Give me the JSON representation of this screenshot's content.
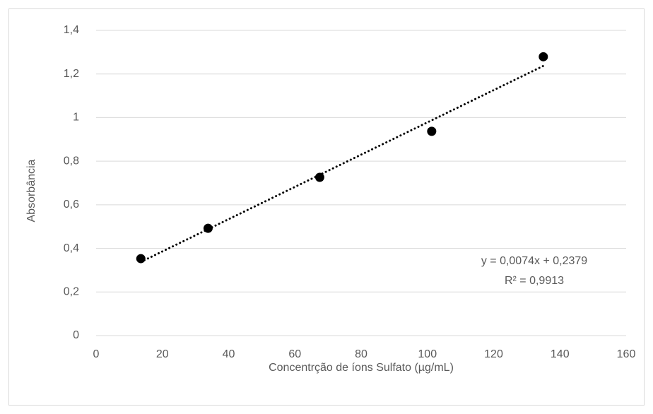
{
  "chart_data": {
    "type": "scatter",
    "x_label": "Concentrção de íons Sulfato (µg/mL)",
    "y_label": "Absorbância",
    "x": [
      13.5,
      33.8,
      67.5,
      101.3,
      135
    ],
    "values": [
      0.353,
      0.492,
      0.726,
      0.937,
      1.279
    ],
    "color": "#000000",
    "xlim": [
      0,
      160
    ],
    "xticks": [
      0,
      20,
      40,
      60,
      80,
      100,
      120,
      140,
      160
    ],
    "ylim": [
      0,
      1.4
    ],
    "yticks": [
      0,
      {
        "value": 0.2,
        "label": "0,2"
      },
      {
        "value": 0.4,
        "label": "0,4"
      },
      {
        "value": 0.6,
        "label": "0,6"
      },
      {
        "value": 0.8,
        "label": "0,8"
      },
      1,
      {
        "value": 1.2,
        "label": "1,2"
      },
      {
        "value": 1.4,
        "label": "1,4"
      }
    ],
    "grid": true,
    "trendline": {
      "slope": 0.0074,
      "intercept": 0.2379,
      "equation": "y = 0,0074x + 0,2379",
      "r2": 0.9913,
      "r2_label": "R² = 0,9913"
    }
  }
}
